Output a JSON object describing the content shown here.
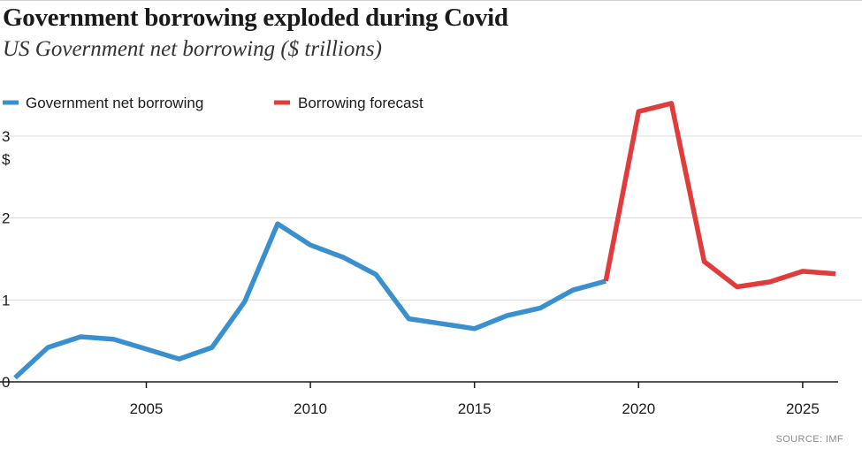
{
  "chart_data": {
    "type": "line",
    "title": "Government borrowing exploded during Covid",
    "subtitle": "US Government net borrowing ($ trillions)",
    "ylabel": "$",
    "xlabel": "",
    "xlim": [
      2001,
      2026
    ],
    "ylim": [
      0,
      3.4
    ],
    "x_ticks": [
      2005,
      2010,
      2015,
      2020,
      2025
    ],
    "y_ticks": [
      0,
      1,
      2,
      3
    ],
    "legend": "top-left",
    "source": "SOURCE: IMF",
    "series": [
      {
        "name": "Government net borrowing",
        "color": "#3a8fcf",
        "x": [
          2001,
          2002,
          2003,
          2004,
          2005,
          2006,
          2007,
          2008,
          2009,
          2010,
          2011,
          2012,
          2013,
          2014,
          2015,
          2016,
          2017,
          2018,
          2019
        ],
        "values": [
          0.05,
          0.42,
          0.55,
          0.52,
          0.4,
          0.28,
          0.42,
          0.98,
          1.93,
          1.67,
          1.52,
          1.31,
          0.77,
          0.71,
          0.65,
          0.81,
          0.9,
          1.12,
          1.23
        ]
      },
      {
        "name": "Borrowing forecast",
        "color": "#e03c3c",
        "x": [
          2019,
          2020,
          2021,
          2022,
          2023,
          2024,
          2025,
          2026
        ],
        "values": [
          1.23,
          3.3,
          3.4,
          1.47,
          1.16,
          1.22,
          1.35,
          1.32
        ]
      }
    ]
  }
}
